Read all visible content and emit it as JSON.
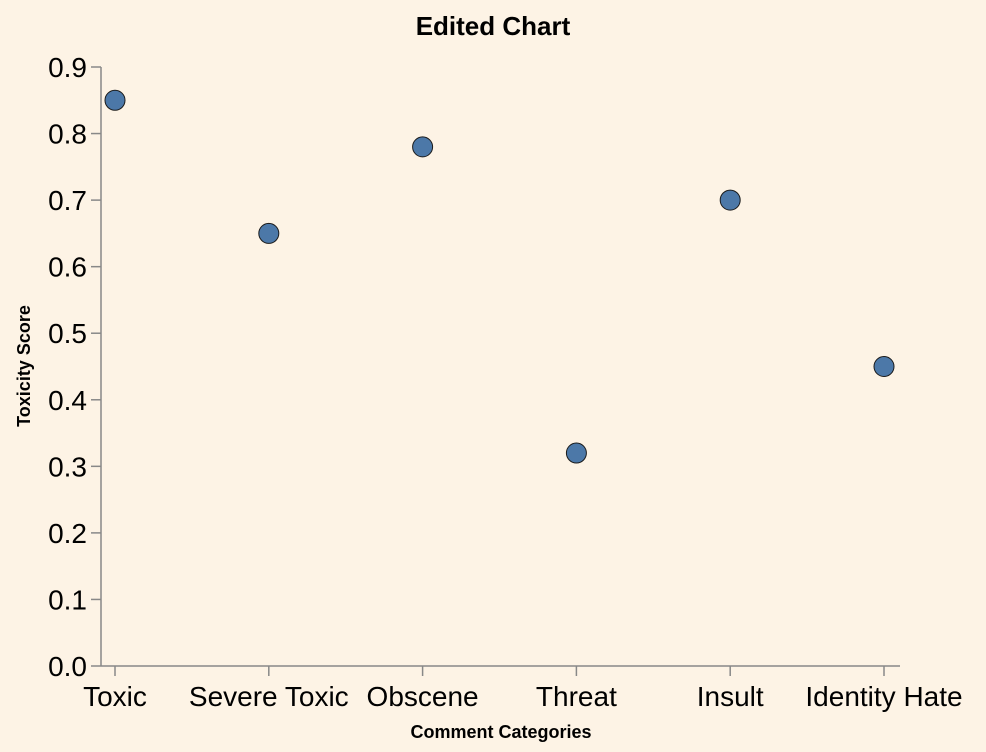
{
  "chart_data": {
    "type": "scatter",
    "title": "Edited Chart",
    "xlabel": "Comment Categories",
    "ylabel": "Toxicity Score",
    "categories": [
      "Toxic",
      "Severe Toxic",
      "Obscene",
      "Threat",
      "Insult",
      "Identity Hate"
    ],
    "values": [
      0.85,
      0.65,
      0.78,
      0.32,
      0.7,
      0.45
    ],
    "ylim": [
      0,
      0.9
    ],
    "yticks": [
      "0.0",
      "0.1",
      "0.2",
      "0.3",
      "0.4",
      "0.5",
      "0.6",
      "0.7",
      "0.8",
      "0.9"
    ],
    "grid": false,
    "point_color": "#4c78a8",
    "background_color": "#fdf3e5"
  }
}
